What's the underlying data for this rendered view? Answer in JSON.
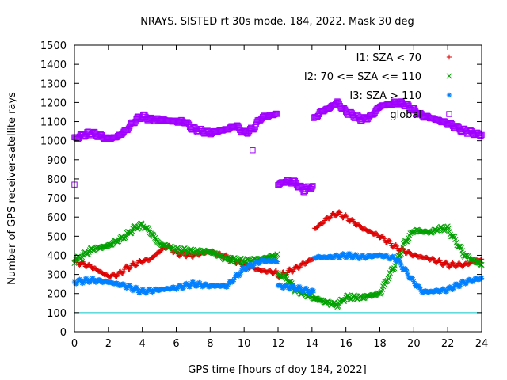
{
  "chart_data": {
    "type": "scatter",
    "title": "NRAYS. SISTED rt 30s mode. 184, 2022. Mask 30 deg",
    "xlabel": "GPS time [hours of doy 184, 2022]",
    "ylabel": "Number of GPS receiver-satellite rays",
    "xlim": [
      0,
      24
    ],
    "ylim": [
      0,
      1500
    ],
    "xticks": [
      "0",
      "2",
      "4",
      "6",
      "8",
      "10",
      "12",
      "14",
      "16",
      "18",
      "20",
      "22",
      "24"
    ],
    "yticks": [
      "0",
      "100",
      "200",
      "300",
      "400",
      "500",
      "600",
      "700",
      "800",
      "900",
      "1000",
      "1100",
      "1200",
      "1300",
      "1400",
      "1500"
    ],
    "grid": false,
    "legend_position": "top-right",
    "reference_line": {
      "y": 100,
      "color": "#00c8c8"
    },
    "series": [
      {
        "name": "I1: SZA < 70",
        "marker": "plus",
        "color": "#dd0000",
        "x": [
          0,
          1,
          2,
          2.6,
          3,
          4,
          4.5,
          5,
          5.5,
          6,
          7,
          8,
          9,
          10,
          11,
          11.9,
          12,
          13,
          14,
          14.2,
          15,
          15.5,
          16,
          17,
          18,
          19,
          20,
          21,
          22,
          23,
          24
        ],
        "y": [
          370,
          340,
          290,
          300,
          330,
          370,
          380,
          420,
          450,
          410,
          400,
          420,
          390,
          350,
          320,
          310,
          290,
          330,
          380,
          540,
          600,
          620,
          600,
          540,
          500,
          440,
          400,
          380,
          350,
          350,
          380
        ]
      },
      {
        "name": "I2: 70 <= SZA <= 110",
        "marker": "cross",
        "color": "#00a000",
        "x": [
          0,
          1,
          2,
          3,
          3.5,
          4,
          4.5,
          5,
          6,
          7,
          8,
          9,
          10,
          11,
          11.9,
          12,
          12.5,
          13,
          14,
          15,
          15.5,
          16,
          17,
          18,
          19,
          19.5,
          20,
          21,
          21.5,
          22,
          23,
          24
        ],
        "y": [
          370,
          430,
          450,
          500,
          540,
          560,
          520,
          460,
          430,
          420,
          420,
          380,
          370,
          380,
          400,
          300,
          280,
          220,
          180,
          150,
          140,
          180,
          180,
          200,
          370,
          470,
          530,
          520,
          540,
          540,
          400,
          350
        ]
      },
      {
        "name": "I3: SZA > 110",
        "marker": "star",
        "color": "#0080ff",
        "x": [
          0,
          1,
          2,
          3,
          4,
          5,
          6,
          7,
          8,
          9,
          10,
          11,
          11.9,
          12,
          13,
          14,
          14.2,
          15,
          16,
          17,
          18,
          19,
          20,
          20.5,
          21,
          22,
          23,
          24
        ],
        "y": [
          260,
          270,
          260,
          240,
          210,
          220,
          230,
          250,
          240,
          240,
          330,
          370,
          370,
          240,
          230,
          210,
          390,
          390,
          400,
          390,
          400,
          380,
          260,
          210,
          210,
          220,
          260,
          280
        ]
      },
      {
        "name": "global",
        "marker": "square",
        "color": "#a000ff",
        "x": [
          0,
          0.5,
          1,
          2,
          2.5,
          3,
          3.5,
          4,
          4.5,
          5,
          6,
          6.5,
          7,
          7.5,
          8,
          9,
          9.5,
          10,
          10.5,
          11,
          11.9,
          12,
          12.5,
          13,
          13.5,
          14,
          14.1,
          14.5,
          15,
          15.5,
          16,
          17,
          17.5,
          18,
          19,
          19.5,
          20,
          20.5,
          21,
          22,
          23,
          24
        ],
        "y": [
          1010,
          1030,
          1040,
          1010,
          1020,
          1050,
          1100,
          1130,
          1110,
          1110,
          1100,
          1100,
          1060,
          1050,
          1040,
          1060,
          1080,
          1040,
          1060,
          1120,
          1140,
          770,
          790,
          780,
          740,
          760,
          1110,
          1150,
          1170,
          1200,
          1150,
          1110,
          1130,
          1180,
          1200,
          1190,
          1160,
          1130,
          1120,
          1090,
          1050,
          1030
        ]
      }
    ],
    "outliers": [
      {
        "series": "global",
        "x": 0,
        "y": 770
      },
      {
        "series": "global",
        "x": 10.5,
        "y": 950
      }
    ]
  }
}
